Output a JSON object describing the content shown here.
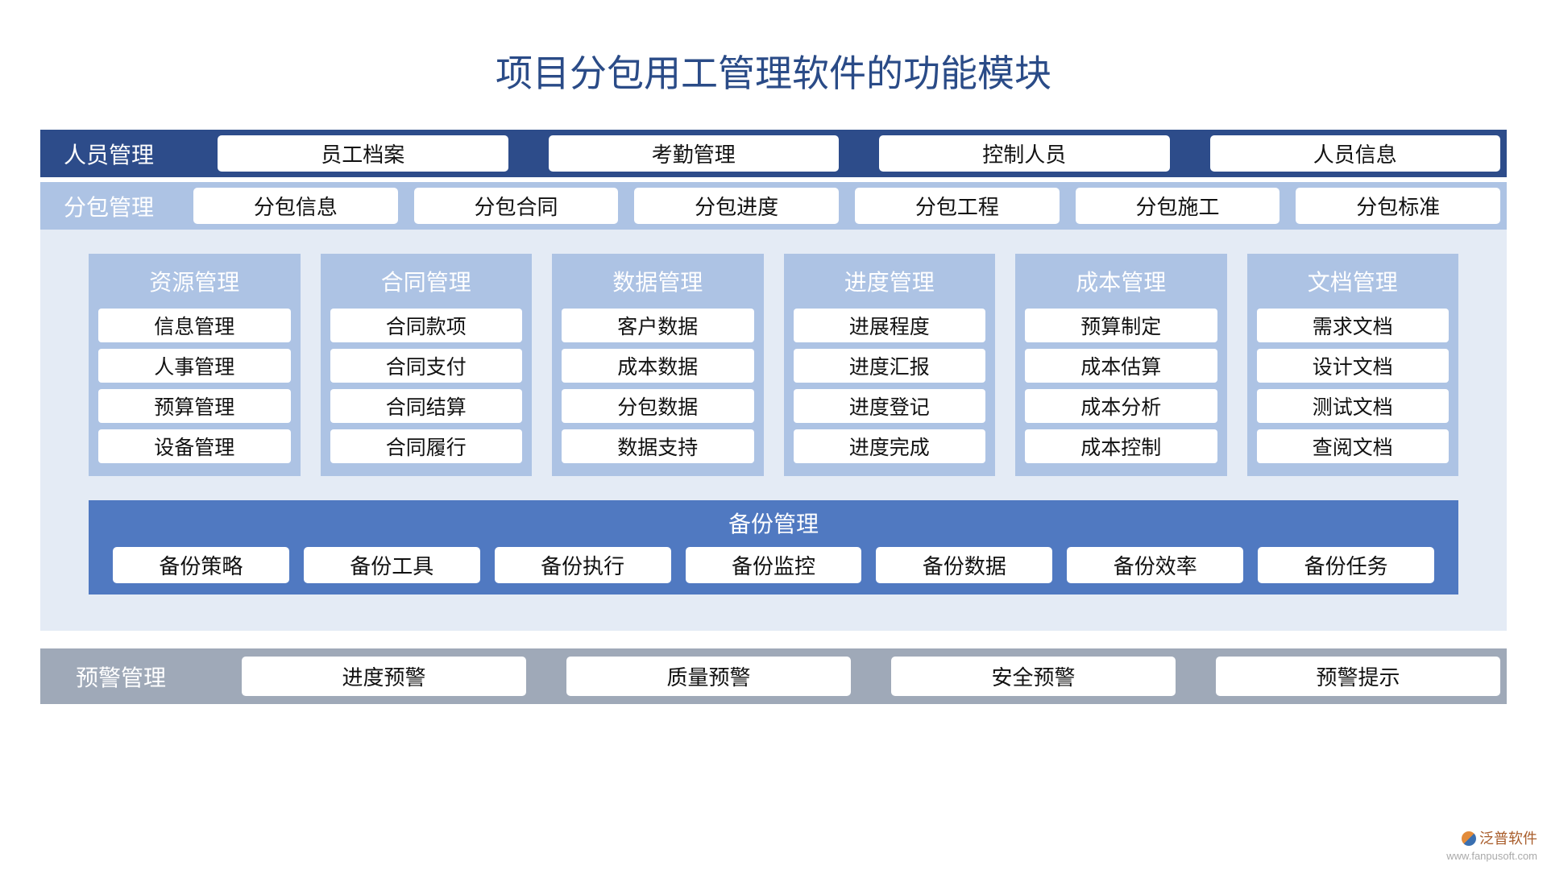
{
  "title": "项目分包用工管理软件的功能模块",
  "colors": {
    "title_text": "#2a4b87",
    "row1_bg": "#2d4c8a",
    "row2_bg": "#adc3e4",
    "midpanel_bg": "#e4ebf5",
    "card_bg": "#adc3e4",
    "backup_bg": "#5079c1",
    "bottom_bg": "#9fa9b8",
    "chip_bg": "#ffffff",
    "white_text": "#ffffff",
    "chip_text": "#111111"
  },
  "typography": {
    "title_fontsize": 46,
    "section_label_fontsize": 28,
    "chip_fontsize": 26,
    "card_item_fontsize": 25
  },
  "row1": {
    "label": "人员管理",
    "items": [
      "员工档案",
      "考勤管理",
      "控制人员",
      "人员信息"
    ]
  },
  "row2": {
    "label": "分包管理",
    "items": [
      "分包信息",
      "分包合同",
      "分包进度",
      "分包工程",
      "分包施工",
      "分包标准"
    ]
  },
  "cards": [
    {
      "title": "资源管理",
      "items": [
        "信息管理",
        "人事管理",
        "预算管理",
        "设备管理"
      ]
    },
    {
      "title": "合同管理",
      "items": [
        "合同款项",
        "合同支付",
        "合同结算",
        "合同履行"
      ]
    },
    {
      "title": "数据管理",
      "items": [
        "客户数据",
        "成本数据",
        "分包数据",
        "数据支持"
      ]
    },
    {
      "title": "进度管理",
      "items": [
        "进展程度",
        "进度汇报",
        "进度登记",
        "进度完成"
      ]
    },
    {
      "title": "成本管理",
      "items": [
        "预算制定",
        "成本估算",
        "成本分析",
        "成本控制"
      ]
    },
    {
      "title": "文档管理",
      "items": [
        "需求文档",
        "设计文档",
        "测试文档",
        "查阅文档"
      ]
    }
  ],
  "backup": {
    "title": "备份管理",
    "items": [
      "备份策略",
      "备份工具",
      "备份执行",
      "备份监控",
      "备份数据",
      "备份效率",
      "备份任务"
    ]
  },
  "bottom": {
    "label": "预警管理",
    "items": [
      "进度预警",
      "质量预警",
      "安全预警",
      "预警提示"
    ]
  },
  "logo": {
    "brand": "泛普软件",
    "url": "www.fanpusoft.com"
  }
}
